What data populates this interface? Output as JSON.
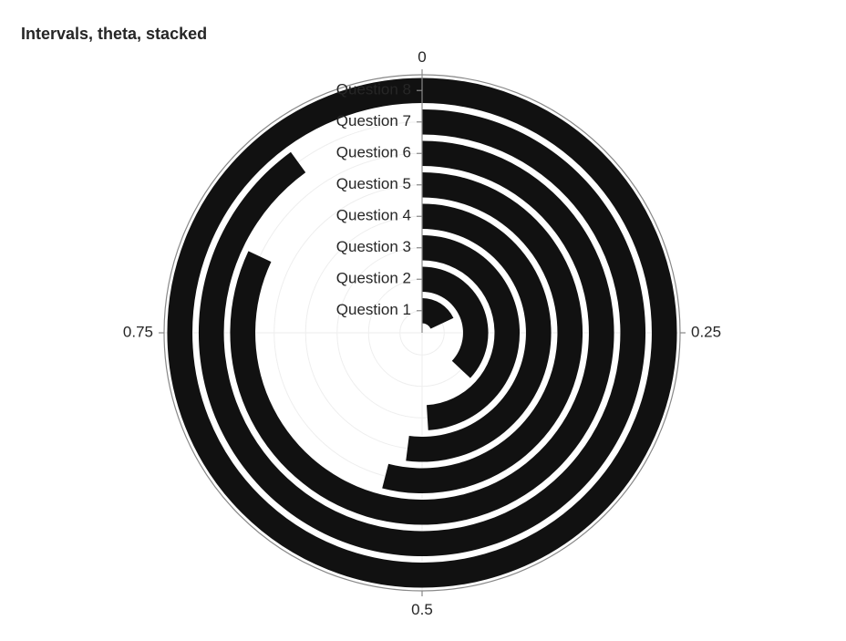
{
  "chart_data": {
    "type": "radial-bar",
    "title": "Intervals, theta, stacked",
    "theta_ticks": [
      "0",
      "0.25",
      "0.5",
      "0.75"
    ],
    "categories": [
      "Question 1",
      "Question 2",
      "Question 3",
      "Question 4",
      "Question 5",
      "Question 6",
      "Question 7",
      "Question 8"
    ],
    "values": [
      0.18,
      0.37,
      0.49,
      0.52,
      0.54,
      0.82,
      0.9,
      1.0
    ],
    "theta_range": [
      0,
      1
    ],
    "grid": true,
    "colors": {
      "bar": "#111111",
      "grid": "#eeeeee",
      "axis": "#888888",
      "text": "#262626"
    }
  }
}
